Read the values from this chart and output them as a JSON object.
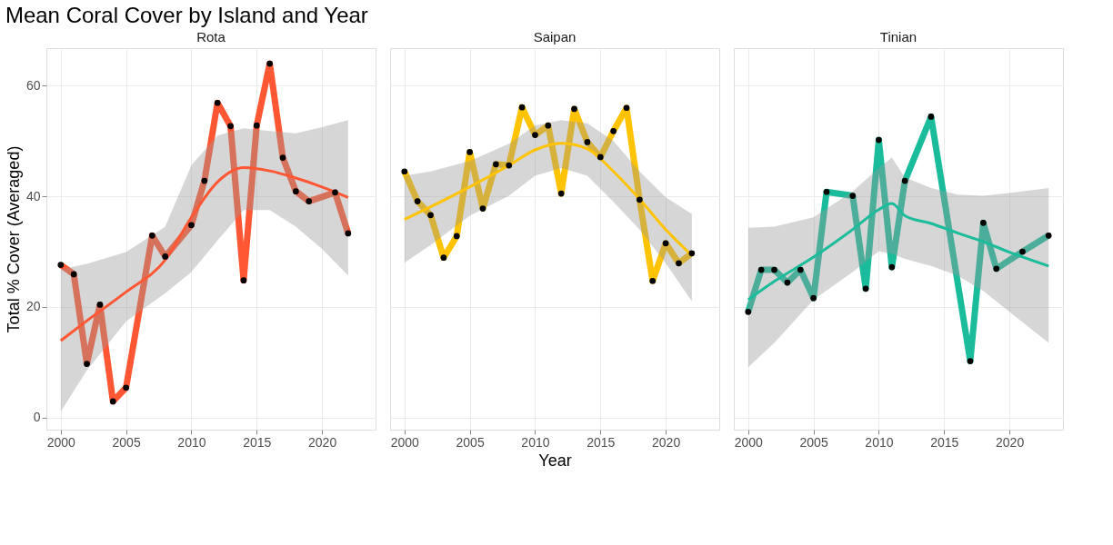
{
  "chart_data": [
    {
      "type": "line",
      "title": "Mean Coral Cover by Island and Year",
      "subtitle": "Rota",
      "ylabel": "Total % Cover (Averaged)",
      "xlim": [
        1998.9,
        2024.1
      ],
      "xticks": [
        2000,
        2005,
        2010,
        2015,
        2020
      ],
      "ylim": [
        -2.2,
        66.8
      ],
      "yticks": [
        0,
        20,
        40,
        60
      ],
      "grid": true,
      "series": [
        {
          "color": "#ff5733",
          "x": [
            2000,
            2001,
            2002,
            2003,
            2004,
            2005,
            2007,
            2008,
            2010,
            2011,
            2012,
            2013,
            2014,
            2015,
            2016,
            2017,
            2018,
            2019,
            2021,
            2022
          ],
          "values": [
            27.6,
            25.9,
            9.7,
            20.4,
            2.9,
            5.4,
            32.9,
            29.1,
            34.8,
            42.8,
            56.9,
            52.7,
            24.8,
            52.8,
            64.0,
            47.0,
            40.9,
            39.1,
            40.7,
            33.3
          ]
        },
        {
          "color": "#ff5733",
          "x": [
            2000,
            2002,
            2005,
            2008,
            2010,
            2012,
            2014,
            2016,
            2018,
            2020,
            2022
          ],
          "values": [
            13.9,
            17.5,
            22.7,
            28.5,
            36.2,
            42.6,
            45.2,
            44.6,
            43.3,
            41.7,
            39.8
          ],
          "lower": [
            1.1,
            8.5,
            17.4,
            22.5,
            26.3,
            32.0,
            37.5,
            37.5,
            34.5,
            30.5,
            25.7
          ],
          "upper": [
            26.8,
            27.8,
            29.9,
            34.5,
            45.6,
            51.0,
            52.3,
            51.8,
            51.4,
            52.5,
            53.8
          ]
        },
        {
          "type": "scatter",
          "color": "#000000",
          "x": [
            2000,
            2001,
            2002,
            2003,
            2004,
            2005,
            2007,
            2008,
            2010,
            2011,
            2012,
            2013,
            2014,
            2015,
            2016,
            2017,
            2018,
            2019,
            2021,
            2022
          ],
          "values": [
            27.6,
            25.9,
            9.7,
            20.4,
            2.9,
            5.4,
            32.9,
            29.1,
            34.8,
            42.8,
            56.9,
            52.7,
            24.8,
            52.8,
            64.0,
            47.0,
            40.9,
            39.1,
            40.7,
            33.3
          ]
        }
      ]
    },
    {
      "type": "line",
      "subtitle": "Saipan",
      "xlabel": "Year",
      "xlim": [
        1998.9,
        2024.1
      ],
      "xticks": [
        2000,
        2005,
        2010,
        2015,
        2020
      ],
      "ylim": [
        -2.2,
        66.8
      ],
      "yticks": [
        0,
        20,
        40,
        60
      ],
      "grid": true,
      "tick_labels": "x",
      "series": [
        {
          "color": "#ffc300",
          "x": [
            2000,
            2001,
            2002,
            2003,
            2004,
            2005,
            2006,
            2007,
            2008,
            2009,
            2010,
            2011,
            2012,
            2013,
            2014,
            2015,
            2016,
            2017,
            2018,
            2019,
            2020,
            2021,
            2022
          ],
          "values": [
            44.5,
            39.1,
            36.6,
            28.9,
            32.8,
            48.0,
            37.8,
            45.8,
            45.6,
            56.1,
            51.1,
            52.8,
            40.5,
            55.8,
            49.8,
            47.1,
            51.8,
            56.0,
            39.4,
            24.7,
            31.5,
            27.9,
            29.7
          ]
        },
        {
          "color": "#ffc300",
          "x": [
            2000,
            2002,
            2005,
            2008,
            2010,
            2012,
            2014,
            2016,
            2018,
            2020,
            2022
          ],
          "values": [
            35.8,
            38.1,
            41.7,
            45.6,
            48.4,
            49.6,
            48.6,
            44.5,
            39.5,
            34.0,
            29.3
          ],
          "lower": [
            28.0,
            31.2,
            36.5,
            40.1,
            43.7,
            45.1,
            43.7,
            39.0,
            34.0,
            27.9,
            21.0
          ],
          "upper": [
            43.7,
            44.5,
            46.4,
            49.5,
            52.8,
            53.8,
            53.2,
            50.0,
            44.5,
            39.8,
            36.8
          ]
        },
        {
          "type": "scatter",
          "color": "#000000",
          "x": [
            2000,
            2001,
            2002,
            2003,
            2004,
            2005,
            2006,
            2007,
            2008,
            2009,
            2010,
            2011,
            2012,
            2013,
            2014,
            2015,
            2016,
            2017,
            2018,
            2019,
            2020,
            2021,
            2022
          ],
          "values": [
            44.5,
            39.1,
            36.6,
            28.9,
            32.8,
            48.0,
            37.8,
            45.8,
            45.6,
            56.1,
            51.1,
            52.8,
            40.5,
            55.8,
            49.8,
            47.1,
            51.8,
            56.0,
            39.4,
            24.7,
            31.5,
            27.9,
            29.7
          ]
        }
      ]
    },
    {
      "type": "line",
      "subtitle": "Tinian",
      "xlim": [
        1998.9,
        2024.1
      ],
      "xticks": [
        2000,
        2005,
        2010,
        2015,
        2020
      ],
      "ylim": [
        -2.2,
        66.8
      ],
      "yticks": [
        0,
        20,
        40,
        60
      ],
      "grid": true,
      "tick_labels": "x",
      "series": [
        {
          "color": "#1abc9c",
          "x": [
            2000,
            2001,
            2002,
            2003,
            2004,
            2005,
            2006,
            2008,
            2009,
            2010,
            2011,
            2012,
            2014,
            2017,
            2018,
            2019,
            2021,
            2023
          ],
          "values": [
            19.1,
            26.7,
            26.7,
            24.4,
            26.7,
            21.6,
            40.8,
            40.1,
            23.3,
            50.2,
            27.2,
            42.8,
            54.4,
            10.2,
            35.2,
            26.9,
            30.0,
            32.9
          ]
        },
        {
          "color": "#1abc9c",
          "x": [
            2000,
            2002,
            2005,
            2008,
            2010,
            2011,
            2012,
            2014,
            2016,
            2018,
            2020,
            2023
          ],
          "values": [
            21.3,
            24.6,
            29.0,
            34.0,
            37.6,
            38.7,
            36.5,
            35.1,
            33.4,
            31.8,
            29.9,
            27.4
          ],
          "lower": [
            9.1,
            13.5,
            21.3,
            26.3,
            30.1,
            29.6,
            28.7,
            27.4,
            25.7,
            22.9,
            19.1,
            13.5
          ],
          "upper": [
            34.3,
            34.5,
            36.2,
            40.9,
            45.1,
            47.0,
            43.4,
            41.5,
            40.3,
            40.1,
            40.6,
            41.5
          ]
        },
        {
          "type": "scatter",
          "color": "#000000",
          "x": [
            2000,
            2001,
            2002,
            2003,
            2004,
            2005,
            2006,
            2008,
            2009,
            2010,
            2011,
            2012,
            2014,
            2017,
            2018,
            2019,
            2021,
            2023
          ],
          "values": [
            19.1,
            26.7,
            26.7,
            24.4,
            26.7,
            21.6,
            40.8,
            40.1,
            23.3,
            50.2,
            27.2,
            42.8,
            54.4,
            10.2,
            35.2,
            26.9,
            30.0,
            32.9
          ]
        }
      ]
    }
  ]
}
